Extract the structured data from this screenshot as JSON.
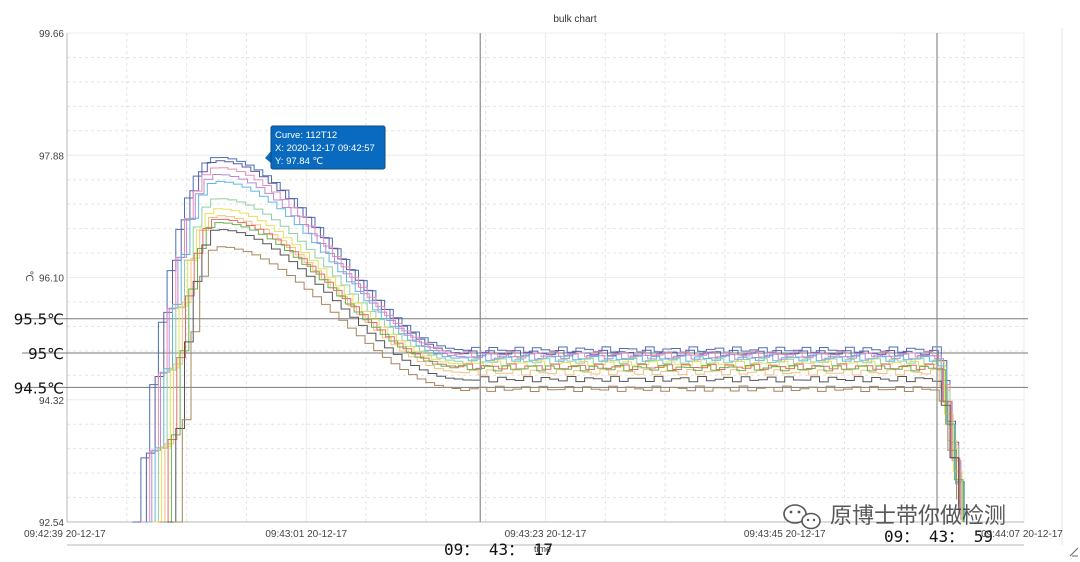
{
  "chart_data": {
    "type": "line",
    "title": "bulk chart",
    "xlabel": "time",
    "ylabel": "℃",
    "x_tick_labels": [
      "09:42:39 20-12-17",
      "09:43:01 20-12-17",
      "09:43:23 20-12-17",
      "09:43:45 20-12-17",
      "09:44:07 20-12-17"
    ],
    "y_tick_labels": [
      "99.66",
      "97.88",
      "96.10",
      "94.32",
      "92.54"
    ],
    "ylim": [
      92.54,
      99.66
    ],
    "xlim_seconds_labels": [
      "09:42:39",
      "09:44:07"
    ],
    "grid": true,
    "reference_lines": [
      {
        "label": "95.5℃",
        "value": 95.5
      },
      {
        "label": "95℃",
        "value": 95.0
      },
      {
        "label": "94.5℃",
        "value": 94.5
      }
    ],
    "markers": [
      {
        "label": "09： 43： 17"
      },
      {
        "label": "09： 43： 59"
      }
    ],
    "tooltip": {
      "curve": "Curve: 112T12",
      "x": "X: 2020-12-17 09:42:57",
      "y": "Y: 97.84 ℃"
    },
    "series": [
      {
        "color": "#4a6fb5",
        "peak": 97.85,
        "plateau": 95.05
      },
      {
        "color": "#5b5ba6",
        "peak": 97.8,
        "plateau": 95.0
      },
      {
        "color": "#e58fb8",
        "peak": 97.7,
        "plateau": 94.98
      },
      {
        "color": "#b88bd6",
        "peak": 97.6,
        "plateau": 94.95
      },
      {
        "color": "#5fb6df",
        "peak": 97.5,
        "plateau": 94.92
      },
      {
        "color": "#8fd0a0",
        "peak": 97.25,
        "plateau": 94.88
      },
      {
        "color": "#e6e05a",
        "peak": 97.1,
        "plateau": 94.84
      },
      {
        "color": "#f4c07a",
        "peak": 97.0,
        "plateau": 94.72
      },
      {
        "color": "#e46a6a",
        "peak": 96.95,
        "plateau": 94.8
      },
      {
        "color": "#6ab04c",
        "peak": 96.9,
        "plateau": 94.78
      },
      {
        "color": "#555555",
        "peak": 96.8,
        "plateau": 94.62
      },
      {
        "color": "#a6865f",
        "peak": 96.55,
        "plateau": 94.48
      }
    ]
  },
  "watermark": {
    "text": "原博士带你做检测",
    "icon": "wechat-icon"
  }
}
